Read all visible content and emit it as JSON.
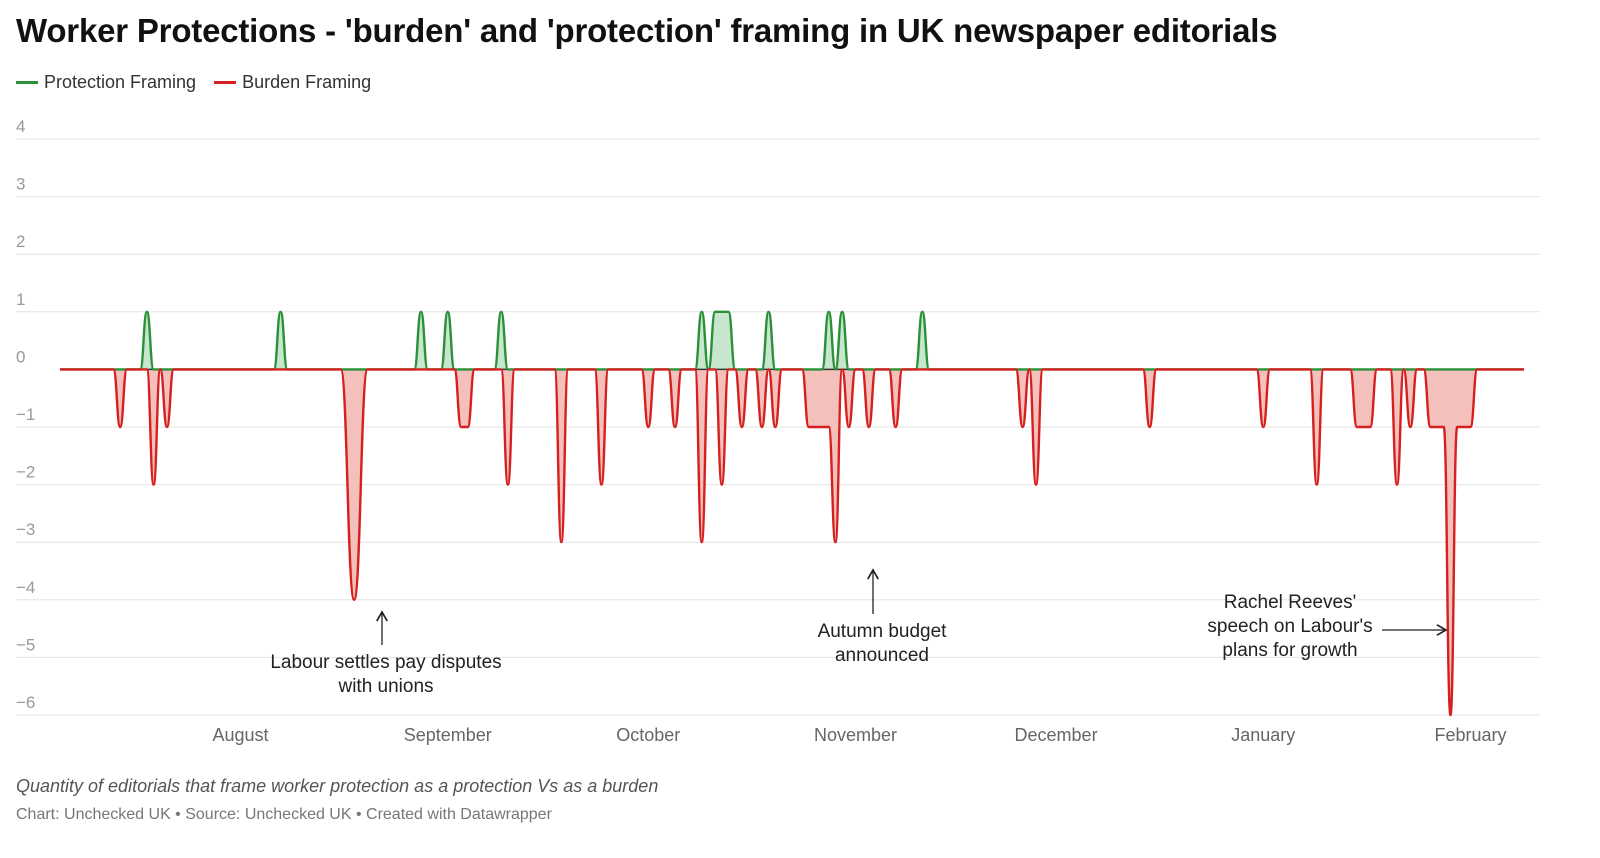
{
  "header": {
    "title": "Worker Protections - 'burden' and 'protection' framing in UK newspaper editorials"
  },
  "legend": [
    {
      "label": "Protection Framing",
      "color": "#2a9139"
    },
    {
      "label": "Burden Framing",
      "color": "#d5201f"
    }
  ],
  "footer": {
    "notes": "Quantity of editorials that frame worker protection as a protection Vs as a burden",
    "credits": "Chart: Unchecked UK • Source: Unchecked UK • Created with Datawrapper"
  },
  "chart_data": {
    "type": "area",
    "title": "Worker Protections - 'burden' and 'protection' framing in UK newspaper editorials",
    "xlabel": "",
    "ylabel": "",
    "ylim": [
      -6,
      4
    ],
    "y_ticks": [
      4,
      3,
      2,
      1,
      0,
      -1,
      -2,
      -3,
      -4,
      -5,
      -6
    ],
    "y_tick_labels": [
      "4",
      "3",
      "2",
      "1",
      "0",
      "−1",
      "−2",
      "−3",
      "−4",
      "−5",
      "−6"
    ],
    "x_range": [
      "2024-07-05",
      "2025-02-09"
    ],
    "x_ticks": [
      {
        "date": "2024-08-01",
        "label": "August"
      },
      {
        "date": "2024-09-01",
        "label": "September"
      },
      {
        "date": "2024-10-01",
        "label": "October"
      },
      {
        "date": "2024-11-01",
        "label": "November"
      },
      {
        "date": "2024-12-01",
        "label": "December"
      },
      {
        "date": "2025-01-01",
        "label": "January"
      },
      {
        "date": "2025-02-01",
        "label": "February"
      }
    ],
    "grid": true,
    "legend_position": "top-left",
    "series": [
      {
        "name": "Protection Framing",
        "color": "#2a9139",
        "fill": "#c7e6cd",
        "points": [
          [
            "2024-07-05",
            0
          ],
          [
            "2024-07-17",
            0
          ],
          [
            "2024-07-18",
            1
          ],
          [
            "2024-07-19",
            0
          ],
          [
            "2024-08-06",
            0
          ],
          [
            "2024-08-07",
            1
          ],
          [
            "2024-08-08",
            0
          ],
          [
            "2024-08-27",
            0
          ],
          [
            "2024-08-28",
            1
          ],
          [
            "2024-08-29",
            0
          ],
          [
            "2024-08-31",
            0
          ],
          [
            "2024-09-01",
            1
          ],
          [
            "2024-09-02",
            0
          ],
          [
            "2024-09-08",
            0
          ],
          [
            "2024-09-09",
            1
          ],
          [
            "2024-09-10",
            0
          ],
          [
            "2024-10-08",
            0
          ],
          [
            "2024-10-09",
            1
          ],
          [
            "2024-10-10",
            0
          ],
          [
            "2024-10-11",
            1
          ],
          [
            "2024-10-13",
            1
          ],
          [
            "2024-10-14",
            0
          ],
          [
            "2024-10-18",
            0
          ],
          [
            "2024-10-19",
            1
          ],
          [
            "2024-10-20",
            0
          ],
          [
            "2024-10-27",
            0
          ],
          [
            "2024-10-28",
            1
          ],
          [
            "2024-10-29",
            0
          ],
          [
            "2024-10-30",
            1
          ],
          [
            "2024-10-31",
            0
          ],
          [
            "2024-11-10",
            0
          ],
          [
            "2024-11-11",
            1
          ],
          [
            "2024-11-12",
            0
          ],
          [
            "2025-02-09",
            0
          ]
        ]
      },
      {
        "name": "Burden Framing",
        "color": "#d5201f",
        "fill": "#f4c0bc",
        "points": [
          [
            "2024-07-05",
            0
          ],
          [
            "2024-07-13",
            0
          ],
          [
            "2024-07-14",
            -1
          ],
          [
            "2024-07-15",
            0
          ],
          [
            "2024-07-18",
            0
          ],
          [
            "2024-07-19",
            -2
          ],
          [
            "2024-07-20",
            0
          ],
          [
            "2024-07-21",
            -1
          ],
          [
            "2024-07-22",
            0
          ],
          [
            "2024-08-16",
            0
          ],
          [
            "2024-08-18",
            -4
          ],
          [
            "2024-08-20",
            0
          ],
          [
            "2024-09-02",
            0
          ],
          [
            "2024-09-03",
            -1
          ],
          [
            "2024-09-04",
            -1
          ],
          [
            "2024-09-05",
            0
          ],
          [
            "2024-09-09",
            0
          ],
          [
            "2024-09-10",
            -2
          ],
          [
            "2024-09-11",
            0
          ],
          [
            "2024-09-17",
            0
          ],
          [
            "2024-09-18",
            -3
          ],
          [
            "2024-09-19",
            0
          ],
          [
            "2024-09-23",
            0
          ],
          [
            "2024-09-24",
            -2
          ],
          [
            "2024-09-25",
            0
          ],
          [
            "2024-09-30",
            0
          ],
          [
            "2024-10-01",
            -1
          ],
          [
            "2024-10-02",
            0
          ],
          [
            "2024-10-04",
            0
          ],
          [
            "2024-10-05",
            -1
          ],
          [
            "2024-10-06",
            0
          ],
          [
            "2024-10-08",
            0
          ],
          [
            "2024-10-09",
            -3
          ],
          [
            "2024-10-10",
            0
          ],
          [
            "2024-10-11",
            0
          ],
          [
            "2024-10-12",
            -2
          ],
          [
            "2024-10-13",
            0
          ],
          [
            "2024-10-14",
            0
          ],
          [
            "2024-10-15",
            -1
          ],
          [
            "2024-10-16",
            0
          ],
          [
            "2024-10-17",
            0
          ],
          [
            "2024-10-18",
            -1
          ],
          [
            "2024-10-19",
            0
          ],
          [
            "2024-10-20",
            -1
          ],
          [
            "2024-10-21",
            0
          ],
          [
            "2024-10-24",
            0
          ],
          [
            "2024-10-25",
            -1
          ],
          [
            "2024-10-27",
            -1
          ],
          [
            "2024-10-28",
            -1
          ],
          [
            "2024-10-29",
            -3
          ],
          [
            "2024-10-30",
            0
          ],
          [
            "2024-10-31",
            -1
          ],
          [
            "2024-11-01",
            0
          ],
          [
            "2024-11-02",
            0
          ],
          [
            "2024-11-03",
            -1
          ],
          [
            "2024-11-04",
            0
          ],
          [
            "2024-11-06",
            0
          ],
          [
            "2024-11-07",
            -1
          ],
          [
            "2024-11-08",
            0
          ],
          [
            "2024-11-25",
            0
          ],
          [
            "2024-11-26",
            -1
          ],
          [
            "2024-11-27",
            0
          ],
          [
            "2024-11-28",
            -2
          ],
          [
            "2024-11-29",
            0
          ],
          [
            "2024-12-14",
            0
          ],
          [
            "2024-12-15",
            -1
          ],
          [
            "2024-12-16",
            0
          ],
          [
            "2024-12-31",
            0
          ],
          [
            "2025-01-01",
            -1
          ],
          [
            "2025-01-02",
            0
          ],
          [
            "2025-01-08",
            0
          ],
          [
            "2025-01-09",
            -2
          ],
          [
            "2025-01-10",
            0
          ],
          [
            "2025-01-14",
            0
          ],
          [
            "2025-01-15",
            -1
          ],
          [
            "2025-01-17",
            -1
          ],
          [
            "2025-01-18",
            0
          ],
          [
            "2025-01-20",
            0
          ],
          [
            "2025-01-21",
            -2
          ],
          [
            "2025-01-22",
            0
          ],
          [
            "2025-01-23",
            -1
          ],
          [
            "2025-01-24",
            0
          ],
          [
            "2025-01-25",
            0
          ],
          [
            "2025-01-26",
            -1
          ],
          [
            "2025-01-28",
            -1
          ],
          [
            "2025-01-29",
            -6
          ],
          [
            "2025-01-30",
            -1
          ],
          [
            "2025-02-01",
            -1
          ],
          [
            "2025-02-02",
            0
          ],
          [
            "2025-02-09",
            0
          ]
        ]
      }
    ],
    "annotations": [
      {
        "text": "Labour settles pay disputes\nwith unions",
        "arrow": "up"
      },
      {
        "text": "Autumn budget\nannounced",
        "arrow": "up"
      },
      {
        "text": "Rachel Reeves'\nspeech on Labour's\nplans for growth",
        "arrow": "right"
      }
    ]
  }
}
